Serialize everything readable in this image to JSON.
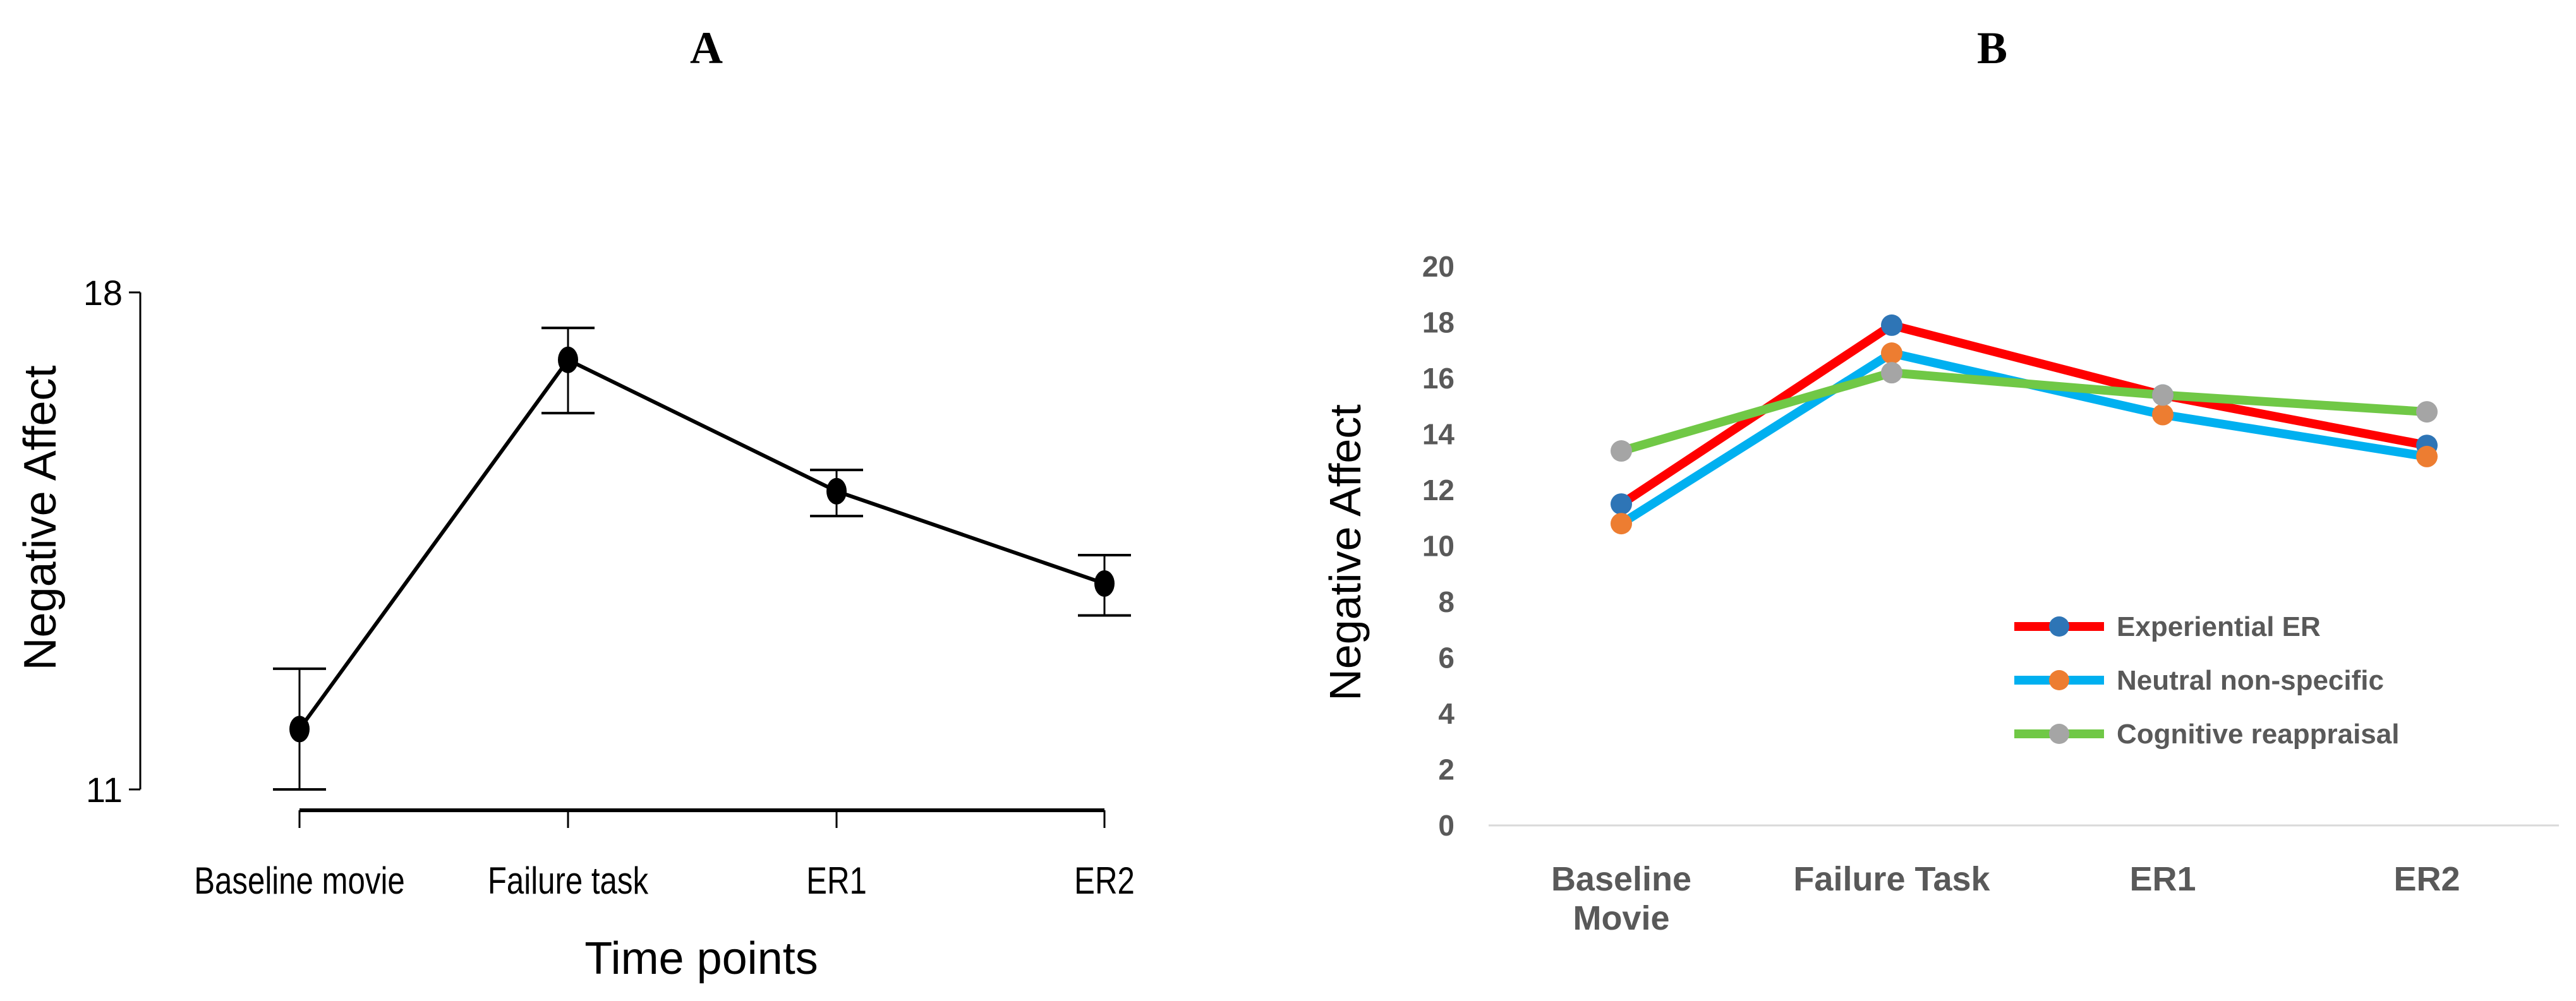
{
  "chart_data": [
    {
      "panel": "A",
      "type": "line",
      "xlabel": "Time points",
      "ylabel": "Negative Affect",
      "ylim": [
        11,
        18
      ],
      "yticks": [
        "11",
        "18"
      ],
      "categories": [
        "Baseline movie",
        "Failure task",
        "ER1",
        "ER2"
      ],
      "series": [
        {
          "name": "Negative Affect",
          "values": [
            11.85,
            17.05,
            15.2,
            13.9
          ],
          "error_low": [
            11.0,
            16.3,
            14.85,
            13.45
          ],
          "error_high": [
            12.7,
            17.5,
            15.5,
            14.3
          ]
        }
      ],
      "colors": {
        "line": "#000000"
      }
    },
    {
      "panel": "B",
      "type": "line",
      "xlabel": "",
      "ylabel": "Negative Affect",
      "ylim": [
        0,
        20
      ],
      "yticks": [
        "0",
        "2",
        "4",
        "6",
        "8",
        "10",
        "12",
        "14",
        "16",
        "18",
        "20"
      ],
      "categories": [
        [
          "Baseline",
          "Movie"
        ],
        [
          "Failure Task"
        ],
        [
          "ER1"
        ],
        [
          "ER2"
        ]
      ],
      "legend_position": "lower-right",
      "series": [
        {
          "name": "Experiential ER",
          "values": [
            11.5,
            17.9,
            15.4,
            13.6
          ],
          "line_color": "#ff0000",
          "marker_color": "#2e75b6"
        },
        {
          "name": "Neutral non-specific",
          "values": [
            10.8,
            16.9,
            14.7,
            13.2
          ],
          "line_color": "#00b0f0",
          "marker_color": "#ed7d31"
        },
        {
          "name": "Cognitive reappraisal",
          "values": [
            13.4,
            16.2,
            15.4,
            14.8
          ],
          "line_color": "#70c846",
          "marker_color": "#a5a5a5"
        }
      ]
    }
  ]
}
